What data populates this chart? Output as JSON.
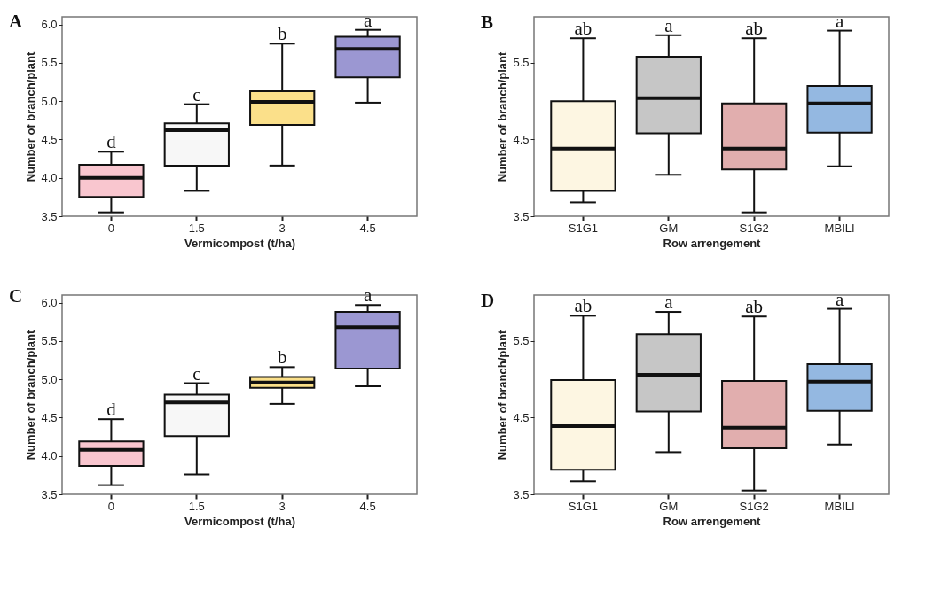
{
  "chart_data": [
    {
      "type": "box",
      "title": "A",
      "xlabel": "Vermicompost (t/ha)",
      "ylabel": "Number of branch/plant",
      "categories": [
        "0",
        "1.5",
        "3",
        "4.5"
      ],
      "colors": [
        "#f9c6cf",
        "#f7f7f7",
        "#fbe08a",
        "#9b97d2"
      ],
      "boxes": [
        {
          "low": 3.55,
          "q1": 3.75,
          "median": 4.0,
          "q3": 4.17,
          "high": 4.34
        },
        {
          "low": 3.83,
          "q1": 4.16,
          "median": 4.62,
          "q3": 4.71,
          "high": 4.96
        },
        {
          "low": 4.16,
          "q1": 4.69,
          "median": 4.99,
          "q3": 5.13,
          "high": 5.75
        },
        {
          "low": 4.98,
          "q1": 5.31,
          "median": 5.68,
          "q3": 5.84,
          "high": 5.93
        }
      ],
      "ylim": [
        3.5,
        6.1
      ],
      "yticks": [
        3.5,
        {
          "value": 4,
          "label": "4.0"
        },
        4.5,
        {
          "value": 5,
          "label": "5.0"
        },
        5.5,
        {
          "value": 6,
          "label": "6.0"
        }
      ],
      "grid": false,
      "annotations": [
        {
          "text": "d",
          "x": "0",
          "y": 4.34
        },
        {
          "text": "c",
          "x": "1.5",
          "y": 4.96
        },
        {
          "text": "b",
          "x": "3",
          "y": 5.75
        },
        {
          "text": "a",
          "x": "4.5",
          "y": 5.93
        }
      ]
    },
    {
      "type": "box",
      "title": "B",
      "xlabel": "Row arrengement",
      "ylabel": "Number of branch/plant",
      "categories": [
        "S1G1",
        "GM",
        "S1G2",
        "MBILI"
      ],
      "colors": [
        "#fdf6e2",
        "#c6c6c6",
        "#e1aeae",
        "#94b8e1"
      ],
      "boxes": [
        {
          "low": 3.68,
          "q1": 3.83,
          "median": 4.38,
          "q3": 5.0,
          "high": 5.82
        },
        {
          "low": 4.04,
          "q1": 4.58,
          "median": 5.04,
          "q3": 5.58,
          "high": 5.86
        },
        {
          "low": 3.55,
          "q1": 4.11,
          "median": 4.38,
          "q3": 4.97,
          "high": 5.82
        },
        {
          "low": 4.15,
          "q1": 4.59,
          "median": 4.97,
          "q3": 5.2,
          "high": 5.92
        }
      ],
      "ylim": [
        3.5,
        6.1
      ],
      "yticks": [
        3.5,
        4.5,
        5.5
      ],
      "grid": false,
      "annotations": [
        {
          "text": "ab",
          "x": "S1G1",
          "y": 5.82
        },
        {
          "text": "a",
          "x": "GM",
          "y": 5.86
        },
        {
          "text": "ab",
          "x": "S1G2",
          "y": 5.82
        },
        {
          "text": "a",
          "x": "MBILI",
          "y": 5.92
        }
      ]
    },
    {
      "type": "box",
      "title": "C",
      "xlabel": "Vermicompost (t/ha)",
      "ylabel": "Number of branch/plant",
      "categories": [
        "0",
        "1.5",
        "3",
        "4.5"
      ],
      "colors": [
        "#f9c6cf",
        "#f7f7f7",
        "#fbe08a",
        "#9b97d2"
      ],
      "boxes": [
        {
          "low": 3.62,
          "q1": 3.87,
          "median": 4.08,
          "q3": 4.19,
          "high": 4.48
        },
        {
          "low": 3.76,
          "q1": 4.26,
          "median": 4.7,
          "q3": 4.8,
          "high": 4.95
        },
        {
          "low": 4.68,
          "q1": 4.89,
          "median": 4.96,
          "q3": 5.03,
          "high": 5.16
        },
        {
          "low": 4.91,
          "q1": 5.14,
          "median": 5.68,
          "q3": 5.88,
          "high": 5.97
        }
      ],
      "ylim": [
        3.5,
        6.1
      ],
      "yticks": [
        3.5,
        {
          "value": 4,
          "label": "4.0"
        },
        4.5,
        {
          "value": 5,
          "label": "5.0"
        },
        5.5,
        {
          "value": 6,
          "label": "6.0"
        }
      ],
      "grid": false,
      "annotations": [
        {
          "text": "d",
          "x": "0",
          "y": 4.48
        },
        {
          "text": "c",
          "x": "1.5",
          "y": 4.95
        },
        {
          "text": "b",
          "x": "3",
          "y": 5.16
        },
        {
          "text": "a",
          "x": "4.5",
          "y": 5.97
        }
      ]
    },
    {
      "type": "box",
      "title": "D",
      "xlabel": "Row arrengement",
      "ylabel": "Number of branch/plant",
      "categories": [
        "S1G1",
        "GM",
        "S1G2",
        "MBILI"
      ],
      "colors": [
        "#fdf6e2",
        "#c6c6c6",
        "#e1aeae",
        "#94b8e1"
      ],
      "boxes": [
        {
          "low": 3.67,
          "q1": 3.82,
          "median": 4.39,
          "q3": 4.99,
          "high": 5.83
        },
        {
          "low": 4.05,
          "q1": 4.58,
          "median": 5.06,
          "q3": 5.59,
          "high": 5.88
        },
        {
          "low": 3.55,
          "q1": 4.1,
          "median": 4.37,
          "q3": 4.98,
          "high": 5.82
        },
        {
          "low": 4.15,
          "q1": 4.59,
          "median": 4.97,
          "q3": 5.2,
          "high": 5.92
        }
      ],
      "ylim": [
        3.5,
        6.1
      ],
      "yticks": [
        3.5,
        4.5,
        5.5
      ],
      "grid": false,
      "annotations": [
        {
          "text": "ab",
          "x": "S1G1",
          "y": 5.83
        },
        {
          "text": "a",
          "x": "GM",
          "y": 5.88
        },
        {
          "text": "ab",
          "x": "S1G2",
          "y": 5.82
        },
        {
          "text": "a",
          "x": "MBILI",
          "y": 5.92
        }
      ]
    }
  ]
}
